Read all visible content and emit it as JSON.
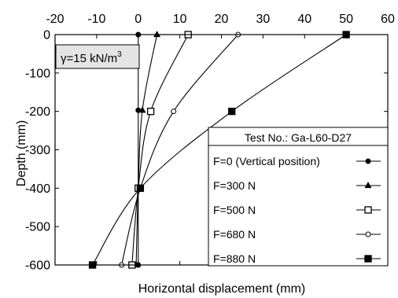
{
  "chart_data": {
    "type": "line",
    "xlabel": "Horizontal displacement (mm)",
    "ylabel": "Depth (mm)",
    "xlim": [
      -20,
      60
    ],
    "ylim": [
      -600,
      0
    ],
    "x_ticks": [
      -20,
      -10,
      0,
      10,
      20,
      30,
      40,
      50,
      60
    ],
    "y_ticks": [
      0,
      -100,
      -200,
      -300,
      -400,
      -500,
      -600
    ],
    "x_axis_position": "top",
    "grid": false,
    "annotation": {
      "prefix": "γ=15 kN/m",
      "superscript": "3"
    },
    "legend": {
      "title": "Test No.: Ga-L60-D27",
      "placement": "center-right"
    },
    "series": [
      {
        "name": "F=0 (Vertical position)",
        "marker": "filled-circle",
        "points": [
          [
            0,
            0
          ],
          [
            0,
            -197
          ],
          [
            0,
            -400
          ],
          [
            0,
            -600
          ]
        ]
      },
      {
        "name": "F=300 N",
        "marker": "filled-triangle",
        "points": [
          [
            4.5,
            0
          ],
          [
            1,
            -197
          ],
          [
            0,
            -400
          ],
          [
            -0.5,
            -600
          ]
        ]
      },
      {
        "name": "F=500 N",
        "marker": "open-square",
        "points": [
          [
            12,
            0
          ],
          [
            3,
            -200
          ],
          [
            0,
            -400
          ],
          [
            -1.5,
            -600
          ]
        ]
      },
      {
        "name": "F=680 N",
        "marker": "open-circle",
        "points": [
          [
            24,
            0
          ],
          [
            8.5,
            -200
          ],
          [
            0.5,
            -400
          ],
          [
            -4,
            -600
          ]
        ]
      },
      {
        "name": "F=880 N",
        "marker": "filled-square",
        "points": [
          [
            50,
            0
          ],
          [
            22.5,
            -200
          ],
          [
            0.5,
            -400
          ],
          [
            -11,
            -600
          ]
        ]
      }
    ]
  }
}
